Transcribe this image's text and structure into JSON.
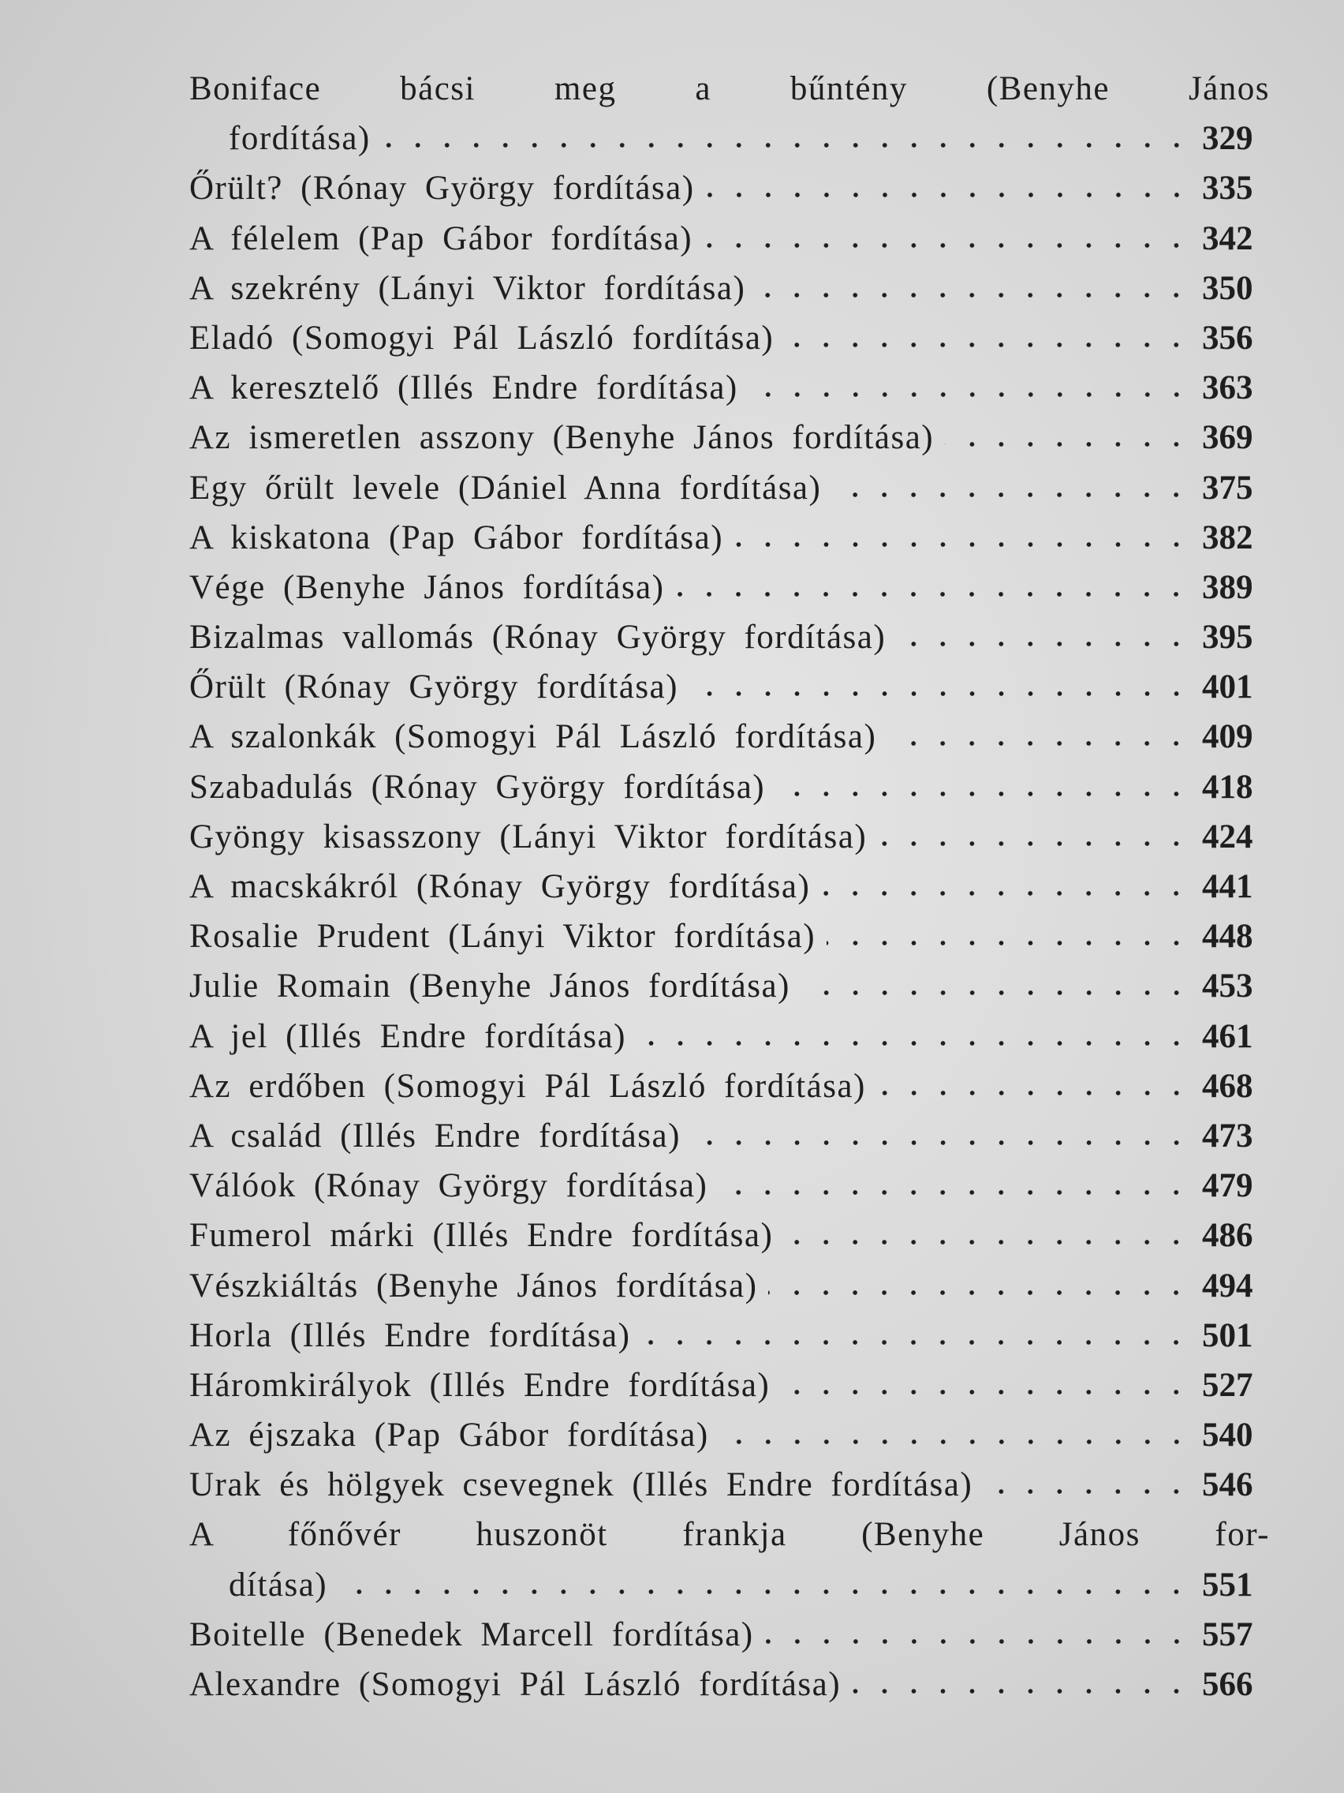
{
  "entries": [
    {
      "lines": [
        "Boniface bácsi meg a bűntény (Benyhe János",
        "fordítása)"
      ],
      "page": 329
    },
    {
      "lines": [
        "Őrült? (Rónay György fordítása)"
      ],
      "page": 335
    },
    {
      "lines": [
        "A félelem (Pap Gábor fordítása)"
      ],
      "page": 342
    },
    {
      "lines": [
        "A szekrény (Lányi Viktor fordítása)"
      ],
      "page": 350
    },
    {
      "lines": [
        "Eladó (Somogyi Pál László fordítása)"
      ],
      "page": 356
    },
    {
      "lines": [
        "A keresztelő (Illés Endre fordítása)"
      ],
      "page": 363
    },
    {
      "lines": [
        "Az ismeretlen asszony (Benyhe János fordítása)"
      ],
      "page": 369
    },
    {
      "lines": [
        "Egy őrült levele (Dániel Anna fordítása)"
      ],
      "page": 375
    },
    {
      "lines": [
        "A kiskatona (Pap Gábor fordítása)"
      ],
      "page": 382
    },
    {
      "lines": [
        "Vége (Benyhe János fordítása)"
      ],
      "page": 389
    },
    {
      "lines": [
        "Bizalmas vallomás (Rónay György fordítása)"
      ],
      "page": 395
    },
    {
      "lines": [
        "Őrült (Rónay György fordítása)"
      ],
      "page": 401
    },
    {
      "lines": [
        "A szalonkák (Somogyi Pál László fordítása)"
      ],
      "page": 409
    },
    {
      "lines": [
        "Szabadulás (Rónay György fordítása)"
      ],
      "page": 418
    },
    {
      "lines": [
        "Gyöngy kisasszony (Lányi Viktor fordítása)"
      ],
      "page": 424
    },
    {
      "lines": [
        "A macskákról (Rónay György fordítása)"
      ],
      "page": 441
    },
    {
      "lines": [
        "Rosalie Prudent (Lányi Viktor fordítása)"
      ],
      "page": 448
    },
    {
      "lines": [
        "Julie Romain (Benyhe János fordítása)"
      ],
      "page": 453
    },
    {
      "lines": [
        "A jel (Illés Endre fordítása)"
      ],
      "page": 461
    },
    {
      "lines": [
        "Az erdőben (Somogyi Pál László fordítása)"
      ],
      "page": 468
    },
    {
      "lines": [
        "A család (Illés Endre fordítása)"
      ],
      "page": 473
    },
    {
      "lines": [
        "Válóok (Rónay György fordítása)"
      ],
      "page": 479
    },
    {
      "lines": [
        "Fumerol márki (Illés Endre fordítása)"
      ],
      "page": 486
    },
    {
      "lines": [
        "Vészkiáltás (Benyhe János fordítása)"
      ],
      "page": 494
    },
    {
      "lines": [
        "Horla (Illés Endre fordítása)"
      ],
      "page": 501
    },
    {
      "lines": [
        "Háromkirályok (Illés Endre fordítása)"
      ],
      "page": 527
    },
    {
      "lines": [
        "Az éjszaka (Pap Gábor fordítása)"
      ],
      "page": 540
    },
    {
      "lines": [
        "Urak és hölgyek csevegnek (Illés Endre fordítása)"
      ],
      "page": 546
    },
    {
      "lines": [
        "A főnővér huszonöt frankja (Benyhe János for-",
        "dítása)"
      ],
      "page": 551
    },
    {
      "lines": [
        "Boitelle (Benedek Marcell fordítása)"
      ],
      "page": 557
    },
    {
      "lines": [
        "Alexandre (Somogyi Pál László fordítása)"
      ],
      "page": 566
    }
  ]
}
